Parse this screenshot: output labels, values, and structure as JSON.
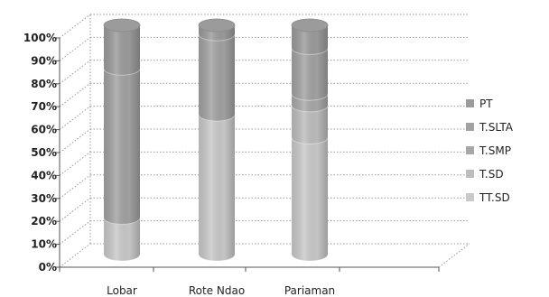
{
  "chart_data": {
    "type": "bar",
    "stacked": true,
    "percent": true,
    "style": "3d-cylinder",
    "categories": [
      "Lobar",
      "Rote Ndao",
      "Pariaman"
    ],
    "series": [
      {
        "name": "TT.SD",
        "values": [
          16,
          61,
          51
        ],
        "color": "#c9c9c9"
      },
      {
        "name": "T.SD",
        "values": [
          0,
          0,
          14
        ],
        "color": "#bdbdbd"
      },
      {
        "name": "T.SMP",
        "values": [
          0,
          0,
          5
        ],
        "color": "#a8a8a8"
      },
      {
        "name": "T.SLTA",
        "values": [
          65,
          35,
          20
        ],
        "color": "#a2a2a2"
      },
      {
        "name": "PT",
        "values": [
          19,
          4,
          10
        ],
        "color": "#9b9b9b"
      }
    ],
    "ylim": [
      0,
      100
    ],
    "yticks": [
      "0%",
      "10%",
      "20%",
      "30%",
      "40%",
      "50%",
      "60%",
      "70%",
      "80%",
      "90%",
      "100%"
    ],
    "grid": true,
    "legend": "right",
    "title": "",
    "xlabel": "",
    "ylabel": ""
  }
}
